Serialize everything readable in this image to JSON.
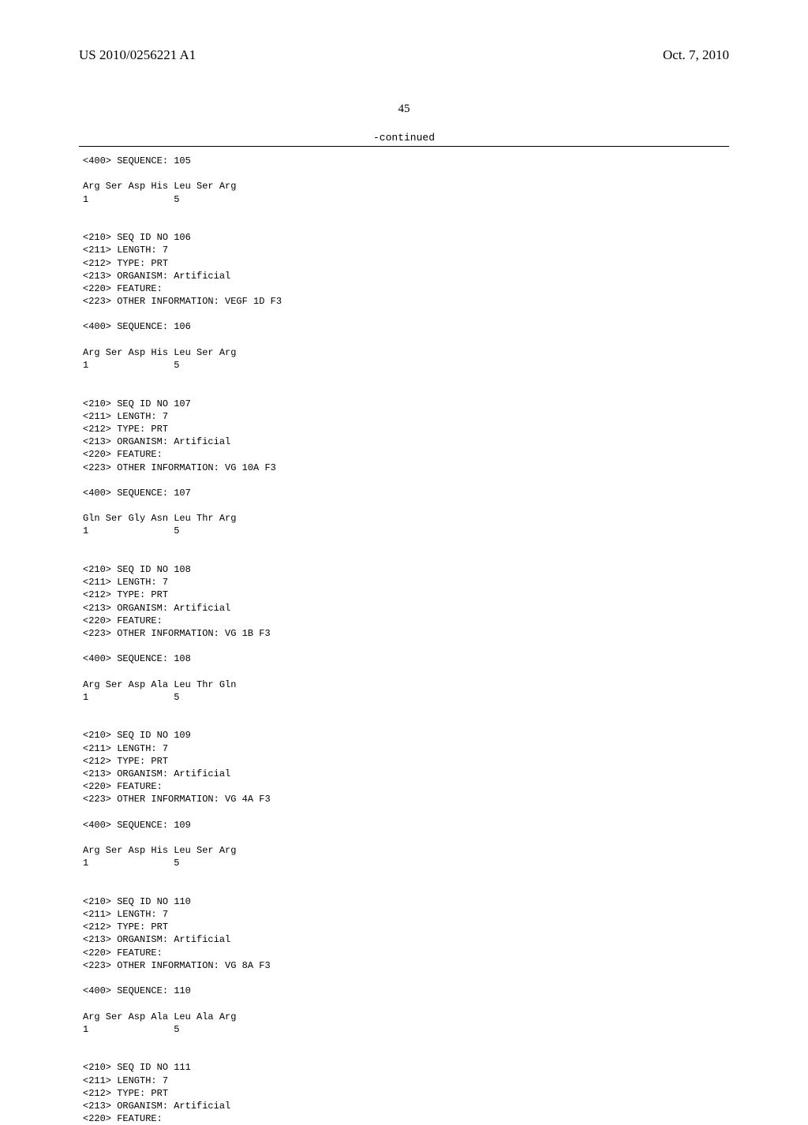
{
  "header": {
    "pub_number": "US 2010/0256221 A1",
    "pub_date": "Oct. 7, 2010"
  },
  "page_number": "45",
  "continued_label": "-continued",
  "sequence_listing": "<400> SEQUENCE: 105\n\nArg Ser Asp His Leu Ser Arg\n1               5\n\n\n<210> SEQ ID NO 106\n<211> LENGTH: 7\n<212> TYPE: PRT\n<213> ORGANISM: Artificial\n<220> FEATURE:\n<223> OTHER INFORMATION: VEGF 1D F3\n\n<400> SEQUENCE: 106\n\nArg Ser Asp His Leu Ser Arg\n1               5\n\n\n<210> SEQ ID NO 107\n<211> LENGTH: 7\n<212> TYPE: PRT\n<213> ORGANISM: Artificial\n<220> FEATURE:\n<223> OTHER INFORMATION: VG 10A F3\n\n<400> SEQUENCE: 107\n\nGln Ser Gly Asn Leu Thr Arg\n1               5\n\n\n<210> SEQ ID NO 108\n<211> LENGTH: 7\n<212> TYPE: PRT\n<213> ORGANISM: Artificial\n<220> FEATURE:\n<223> OTHER INFORMATION: VG 1B F3\n\n<400> SEQUENCE: 108\n\nArg Ser Asp Ala Leu Thr Gln\n1               5\n\n\n<210> SEQ ID NO 109\n<211> LENGTH: 7\n<212> TYPE: PRT\n<213> ORGANISM: Artificial\n<220> FEATURE:\n<223> OTHER INFORMATION: VG 4A F3\n\n<400> SEQUENCE: 109\n\nArg Ser Asp His Leu Ser Arg\n1               5\n\n\n<210> SEQ ID NO 110\n<211> LENGTH: 7\n<212> TYPE: PRT\n<213> ORGANISM: Artificial\n<220> FEATURE:\n<223> OTHER INFORMATION: VG 8A F3\n\n<400> SEQUENCE: 110\n\nArg Ser Asp Ala Leu Ala Arg\n1               5\n\n\n<210> SEQ ID NO 111\n<211> LENGTH: 7\n<212> TYPE: PRT\n<213> ORGANISM: Artificial\n<220> FEATURE:"
}
